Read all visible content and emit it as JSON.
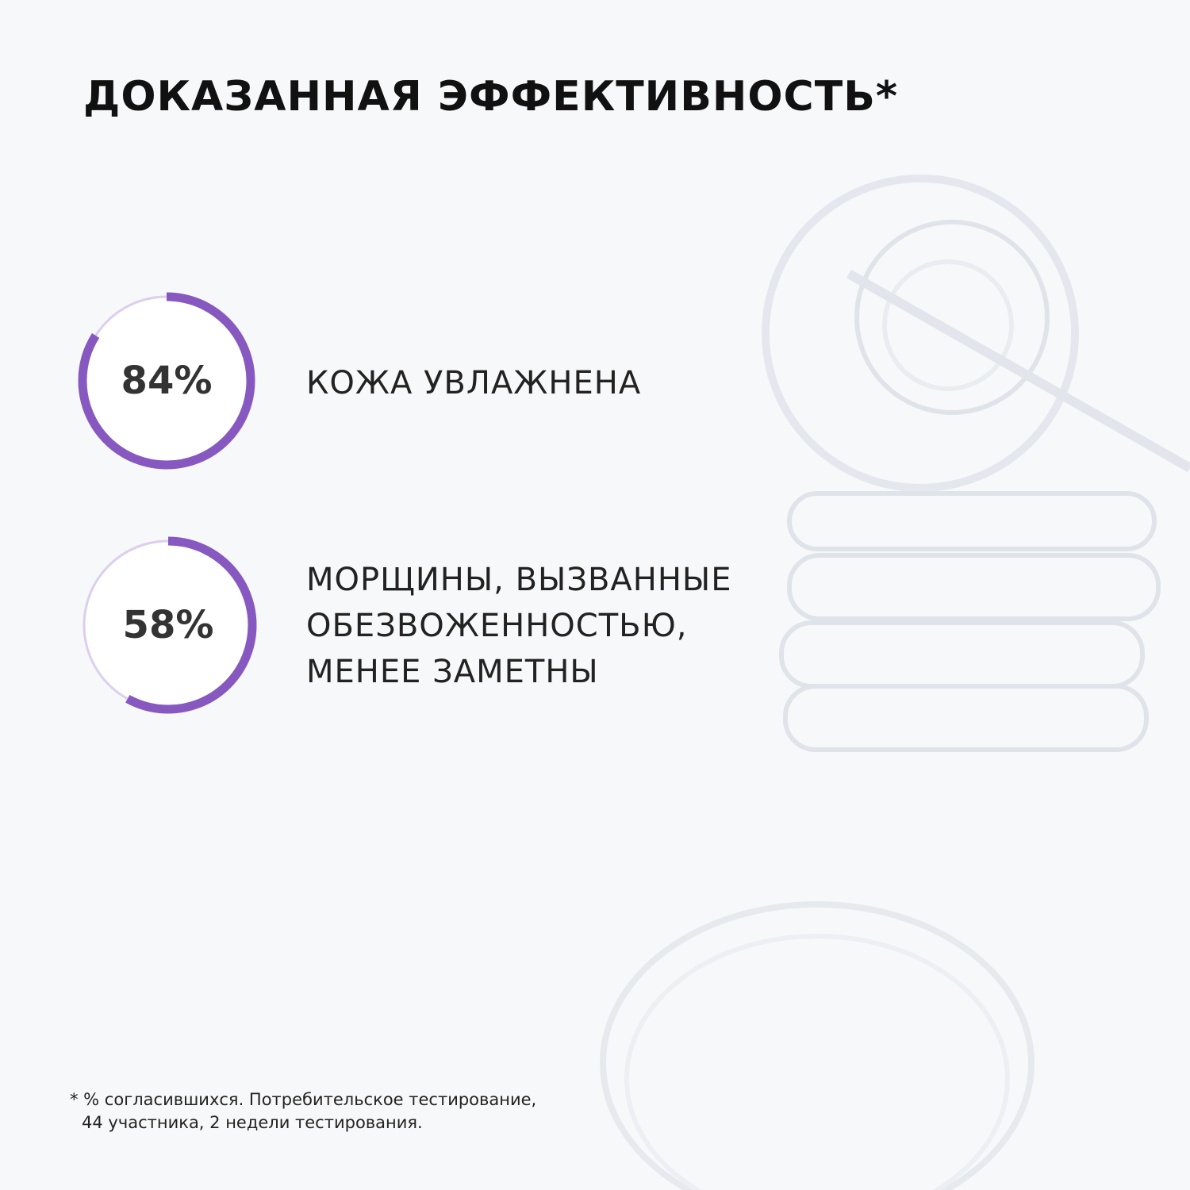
{
  "title": "ДОКАЗАННАЯ ЭФФЕКТИВНОСТЬ*",
  "colors": {
    "accent": "#8759c0",
    "track": "#dccfed",
    "background": "#f7f8fa"
  },
  "stats": [
    {
      "percent": 84,
      "value_label": "84%",
      "lines": [
        "КОЖА УВЛАЖНЕНА"
      ]
    },
    {
      "percent": 58,
      "value_label": "58%",
      "lines": [
        "МОРЩИНЫ, ВЫЗВАННЫЕ",
        "ОБЕЗВОЖЕННОСТЬЮ,",
        "МЕНЕЕ ЗАМЕТНЫ"
      ]
    }
  ],
  "footnote": {
    "line1": "* % согласившихся. Потребительское тестирование,",
    "line2": "44 участника, 2 недели тестирования."
  }
}
